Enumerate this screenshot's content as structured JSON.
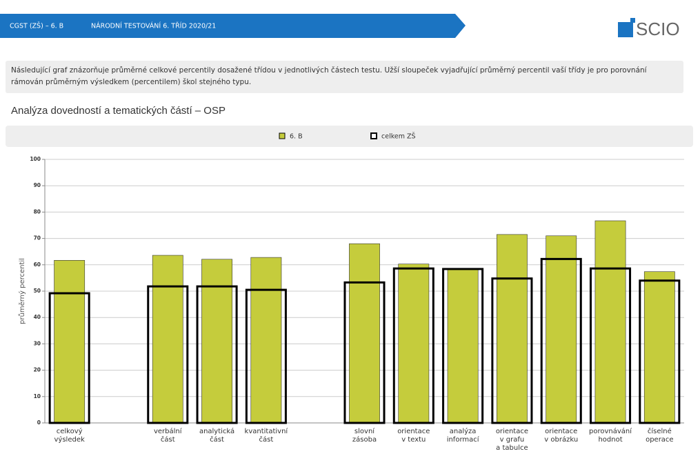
{
  "header": {
    "class": "CGST (ZŠ) – 6. B",
    "test": "NÁRODNÍ TESTOVÁNÍ 6. TŘÍD 2020/21"
  },
  "logo": "SCIO",
  "description": "Následující graf znázorňuje průměrné celkové percentily dosažené třídou v jednotlivých částech testu. Užší sloupeček vyjadřující průměrný percentil vaší třídy je pro porovnání rámován průměrným výsledkem (percentilem) škol stejného typu.",
  "chart_data": {
    "type": "bar",
    "title": "Analýza dovedností a tematických částí – OSP",
    "ylabel": "průměrný percentil",
    "categories": [
      "celkový\nvýsledek",
      null,
      "verbální\nčást",
      "analytická\nčást",
      "kvantitativní\nčást",
      null,
      "slovní\nzásoba",
      "orientace\nv textu",
      "analýza\ninformací",
      "orientace\nv grafu\na tabulce",
      "orientace\nv obrázku",
      "porovnávání\nhodnot",
      "číselné\noperace"
    ],
    "series": [
      {
        "name": "6. B",
        "color": "#c5cc3c",
        "values": [
          61.7,
          null,
          63.6,
          62.1,
          62.8,
          null,
          68,
          60.3,
          58.4,
          71.5,
          71,
          76.7,
          57.4
        ]
      },
      {
        "name": "celkem ZŠ",
        "color": "#000000",
        "style": "outline",
        "values": [
          49.2,
          null,
          51.8,
          51.8,
          50.5,
          null,
          53.3,
          58.6,
          58.4,
          54.8,
          62.2,
          58.6,
          54
        ]
      }
    ],
    "ylim": [
      0,
      100
    ],
    "yticks": [
      0,
      10,
      20,
      30,
      40,
      50,
      60,
      70,
      80,
      90,
      100
    ],
    "grid": true
  }
}
